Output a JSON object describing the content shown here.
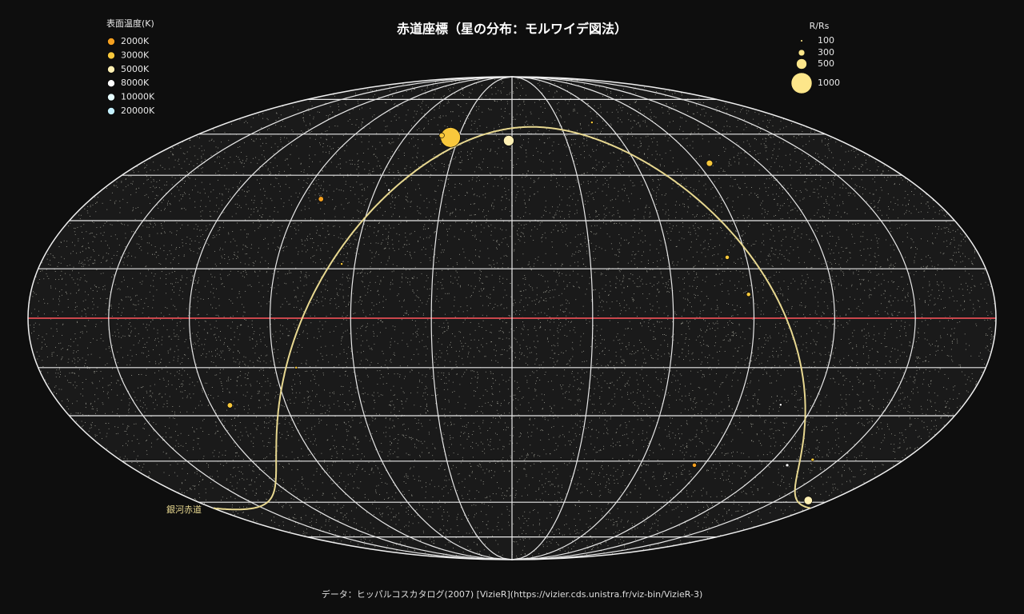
{
  "chart_data": {
    "type": "scatter",
    "title": "赤道座標（星の分布：モルワイデ図法）",
    "projection": "mollweide",
    "temperature_legend": {
      "title": "表面温度(K)",
      "labels": [
        "2000K",
        "3000K",
        "5000K",
        "8000K",
        "10000K",
        "20000K"
      ],
      "values": [
        2000,
        3000,
        5000,
        8000,
        10000,
        20000
      ],
      "colors": [
        "#f5a020",
        "#f8c83c",
        "#fff0b4",
        "#ffffff",
        "#e6fcff",
        "#c4f0ff"
      ]
    },
    "size_legend": {
      "title": "R/Rs",
      "values": [
        100,
        300,
        500,
        1000
      ]
    },
    "galactic_equator_label": "銀河赤道",
    "footer": "データ：ヒッパルコスカタログ(2007) [VizieR](https://vizier.cds.unistra.fr/viz-bin/VizieR-3)",
    "meridians": [
      -150,
      -120,
      -90,
      -60,
      -30,
      0,
      30,
      60,
      90,
      120,
      150
    ],
    "parallels": [
      -75,
      -60,
      -45,
      -30,
      -15,
      0,
      15,
      30,
      45,
      60,
      75
    ],
    "equator_color": "#c8464b",
    "galactic_color": "#e8d890",
    "stars": {
      "lon": [
        -34.5,
        -1.8,
        95.8,
        -81.7,
        85.5,
        168,
        -112.5,
        82.7,
        88.4,
        -40,
        -54,
        129,
        -82,
        -65,
        50.8,
        107,
        138
      ],
      "lat": [
        58.7,
        57.5,
        49.2,
        37,
        -46.4,
        -59.3,
        -26.7,
        18.5,
        7.2,
        59.5,
        40,
        -46.4,
        -15,
        16.5,
        64.7,
        -26.5,
        -44.5
      ],
      "radius": [
        950,
        500,
        300,
        250,
        200,
        400,
        250,
        200,
        200,
        250,
        120,
        150,
        120,
        120,
        120,
        120,
        150
      ],
      "temperature": [
        3000,
        5000,
        3000,
        2000,
        2000,
        5000,
        3000,
        3000,
        3000,
        3000,
        8000,
        8000,
        3000,
        3000,
        3000,
        8000,
        3000
      ]
    }
  }
}
